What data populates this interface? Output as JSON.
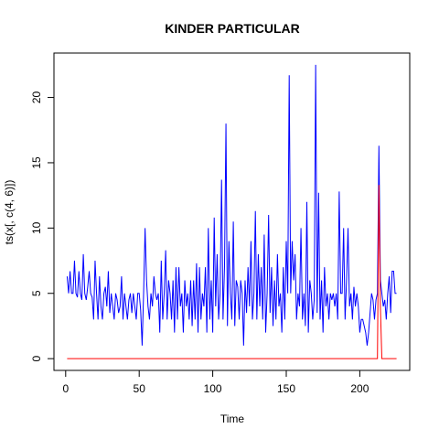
{
  "chart_data": {
    "type": "line",
    "title": "KINDER PARTICULAR",
    "x_label": "Time",
    "y_label": "ts(x[, c(4, 6)])",
    "x": [
      1,
      2,
      3,
      4,
      5,
      6,
      7,
      8,
      9,
      10,
      11,
      12,
      13,
      14,
      15,
      16,
      17,
      18,
      19,
      20,
      21,
      22,
      23,
      24,
      25,
      26,
      27,
      28,
      29,
      30,
      31,
      32,
      33,
      34,
      35,
      36,
      37,
      38,
      39,
      40,
      41,
      42,
      43,
      44,
      45,
      46,
      47,
      48,
      49,
      50,
      51,
      52,
      53,
      54,
      55,
      56,
      57,
      58,
      59,
      60,
      61,
      62,
      63,
      64,
      65,
      66,
      67,
      68,
      69,
      70,
      71,
      72,
      73,
      74,
      75,
      76,
      77,
      78,
      79,
      80,
      81,
      82,
      83,
      84,
      85,
      86,
      87,
      88,
      89,
      90,
      91,
      92,
      93,
      94,
      95,
      96,
      97,
      98,
      99,
      100,
      101,
      102,
      103,
      104,
      105,
      106,
      107,
      108,
      109,
      110,
      111,
      112,
      113,
      114,
      115,
      116,
      117,
      118,
      119,
      120,
      121,
      122,
      123,
      124,
      125,
      126,
      127,
      128,
      129,
      130,
      131,
      132,
      133,
      134,
      135,
      136,
      137,
      138,
      139,
      140,
      141,
      142,
      143,
      144,
      145,
      146,
      147,
      148,
      149,
      150,
      151,
      152,
      153,
      154,
      155,
      156,
      157,
      158,
      159,
      160,
      161,
      162,
      163,
      164,
      165,
      166,
      167,
      168,
      169,
      170,
      171,
      172,
      173,
      174,
      175,
      176,
      177,
      178,
      179,
      180,
      181,
      182,
      183,
      184,
      185,
      186,
      187,
      188,
      189,
      190,
      191,
      192,
      193,
      194,
      195,
      196,
      197,
      198,
      199,
      200,
      201,
      202,
      203,
      204,
      205,
      206,
      207,
      208,
      209,
      210,
      211,
      212,
      213,
      214,
      215,
      216,
      217,
      218,
      219,
      220,
      221,
      222,
      223,
      224,
      225
    ],
    "series": [
      {
        "color": "#0000ff",
        "values": [
          6.3,
          5,
          6.7,
          5,
          5,
          7.5,
          5,
          4.7,
          6.7,
          5,
          4.5,
          8,
          5,
          4.5,
          5.5,
          6.7,
          5,
          4.7,
          3,
          7.5,
          5,
          3,
          6.3,
          4,
          3,
          5,
          5.5,
          4,
          6.7,
          3.5,
          5,
          4,
          3,
          5,
          4.5,
          3.5,
          4,
          6.3,
          3,
          5,
          4,
          3,
          4.5,
          5,
          3.5,
          5,
          4,
          3,
          5,
          5,
          3.7,
          1,
          5,
          10,
          6,
          4,
          3,
          5,
          4,
          6.3,
          5,
          4.5,
          5,
          2,
          7.5,
          3,
          5,
          8.3,
          3,
          6,
          5,
          3,
          6,
          2,
          7,
          3,
          7,
          4,
          5,
          2,
          6,
          4,
          5,
          3,
          6,
          2.5,
          6,
          3,
          7.3,
          2,
          7,
          3,
          5,
          4,
          7,
          2,
          10,
          3,
          6,
          2,
          10.8,
          4,
          8,
          3,
          5,
          13.7,
          3,
          7,
          18,
          2.5,
          9,
          5,
          3,
          10.5,
          2.5,
          6,
          5.5,
          3,
          6,
          5,
          1,
          6,
          3.5,
          7,
          4,
          9,
          3,
          5,
          11.3,
          3,
          8,
          4,
          7,
          3,
          9.5,
          2,
          5,
          11,
          3.5,
          7,
          2.5,
          6,
          3,
          8,
          4,
          5,
          2,
          7,
          3,
          9,
          5,
          21.7,
          5,
          9,
          6,
          8,
          3,
          5,
          4,
          10,
          3,
          5,
          2.5,
          12,
          2,
          6,
          5,
          3,
          4.5,
          22.5,
          3.5,
          12.7,
          3,
          6,
          2,
          7,
          4,
          5,
          3,
          5,
          4.5,
          5,
          4,
          5,
          3,
          12.8,
          5,
          5,
          10,
          3,
          6,
          10,
          4,
          5,
          3,
          5.5,
          4,
          5,
          4,
          2,
          3,
          3,
          2.5,
          2,
          1,
          2,
          3.5,
          5,
          4.5,
          3,
          4.5,
          5,
          16.3,
          6,
          5,
          4,
          4.5,
          3,
          5,
          6.3,
          3.5,
          6.7,
          6.7,
          5,
          5
        ]
      },
      {
        "color": "#ff0000",
        "values": [
          0,
          0,
          0,
          0,
          0,
          0,
          0,
          0,
          0,
          0,
          0,
          0,
          0,
          0,
          0,
          0,
          0,
          0,
          0,
          0,
          0,
          0,
          0,
          0,
          0,
          0,
          0,
          0,
          0,
          0,
          0,
          0,
          0,
          0,
          0,
          0,
          0,
          0,
          0,
          0,
          0,
          0,
          0,
          0,
          0,
          0,
          0,
          0,
          0,
          0,
          0,
          0,
          0,
          0,
          0,
          0,
          0,
          0,
          0,
          0,
          0,
          0,
          0,
          0,
          0,
          0,
          0,
          0,
          0,
          0,
          0,
          0,
          0,
          0,
          0,
          0,
          0,
          0,
          0,
          0,
          0,
          0,
          0,
          0,
          0,
          0,
          0,
          0,
          0,
          0,
          0,
          0,
          0,
          0,
          0,
          0,
          0,
          0,
          0,
          0,
          0,
          0,
          0,
          0,
          0,
          0,
          0,
          0,
          0,
          0,
          0,
          0,
          0,
          0,
          0,
          0,
          0,
          0,
          0,
          0,
          0,
          0,
          0,
          0,
          0,
          0,
          0,
          0,
          0,
          0,
          0,
          0,
          0,
          0,
          0,
          0,
          0,
          0,
          0,
          0,
          0,
          0,
          0,
          0,
          0,
          0,
          0,
          0,
          0,
          0,
          0,
          0,
          0,
          0,
          0,
          0,
          0,
          0,
          0,
          0,
          0,
          0,
          0,
          0,
          0,
          0,
          0,
          0,
          0,
          0,
          0,
          0,
          0,
          0,
          0,
          0,
          0,
          0,
          0,
          0,
          0,
          0,
          0,
          0,
          0,
          0,
          0,
          0,
          0,
          0,
          0,
          0,
          0,
          0,
          0,
          0,
          0,
          0,
          0,
          0,
          0,
          0,
          0,
          0,
          0,
          0,
          0,
          0,
          0,
          0,
          0,
          0,
          13.3,
          4,
          0,
          0,
          0,
          0,
          0,
          0,
          0,
          0,
          0,
          0,
          0
        ]
      }
    ],
    "xlim": [
      -7.96,
      233.96
    ],
    "xticks": [
      0,
      50,
      100,
      150,
      200
    ],
    "ylim": [
      -0.9,
      23.4
    ],
    "yticks": [
      0,
      5,
      10,
      15,
      20
    ]
  }
}
